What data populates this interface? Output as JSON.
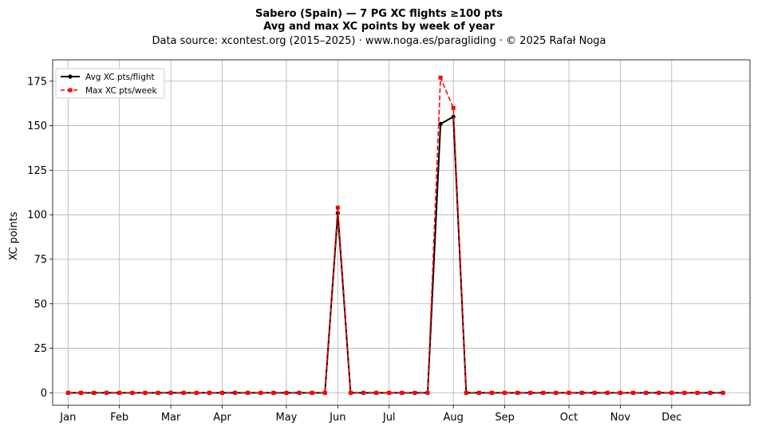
{
  "chart_data": {
    "type": "line",
    "title_line1": "Sabero (Spain)  —  7 PG XC flights ≥100 pts",
    "title_line2": "Avg and max XC points by week of year",
    "subtitle": "Data source: xcontest.org (2015–2025)  ·  www.noga.es/paragliding  ·  © 2025 Rafał Noga",
    "xlabel": "",
    "ylabel": "XC points",
    "ylim": [
      -7,
      187
    ],
    "xlim": [
      -1.2,
      53.1
    ],
    "yticks": [
      0,
      25,
      50,
      75,
      100,
      125,
      150,
      175
    ],
    "xticks": [
      {
        "week": 0,
        "label": "Jan"
      },
      {
        "week": 4,
        "label": "Feb"
      },
      {
        "week": 8,
        "label": "Mar"
      },
      {
        "week": 12,
        "label": "Apr"
      },
      {
        "week": 17,
        "label": "May"
      },
      {
        "week": 21,
        "label": "Jun"
      },
      {
        "week": 25,
        "label": "Jul"
      },
      {
        "week": 30,
        "label": "Aug"
      },
      {
        "week": 34,
        "label": "Sep"
      },
      {
        "week": 39,
        "label": "Oct"
      },
      {
        "week": 43,
        "label": "Nov"
      },
      {
        "week": 47,
        "label": "Dec"
      }
    ],
    "grid": true,
    "legend_position": "top-left",
    "x": [
      0,
      1,
      2,
      3,
      4,
      5,
      6,
      7,
      8,
      9,
      10,
      11,
      12,
      13,
      14,
      15,
      16,
      17,
      18,
      19,
      20,
      21,
      22,
      23,
      24,
      25,
      26,
      27,
      28,
      29,
      30,
      31,
      32,
      33,
      34,
      35,
      36,
      37,
      38,
      39,
      40,
      41,
      42,
      43,
      44,
      45,
      46,
      47,
      48,
      49,
      50,
      51
    ],
    "series": [
      {
        "name": "Avg XC pts/flight",
        "color": "#000000",
        "style": "solid",
        "marker": "circle",
        "values": [
          0,
          0,
          0,
          0,
          0,
          0,
          0,
          0,
          0,
          0,
          0,
          0,
          0,
          0,
          0,
          0,
          0,
          0,
          0,
          0,
          0,
          101,
          0,
          0,
          0,
          0,
          0,
          0,
          0,
          151,
          155,
          0,
          0,
          0,
          0,
          0,
          0,
          0,
          0,
          0,
          0,
          0,
          0,
          0,
          0,
          0,
          0,
          0,
          0,
          0,
          0,
          0
        ]
      },
      {
        "name": "Max XC pts/week",
        "color": "#ff0000",
        "style": "dashed",
        "marker": "square",
        "values": [
          0,
          0,
          0,
          0,
          0,
          0,
          0,
          0,
          0,
          0,
          0,
          0,
          0,
          0,
          0,
          0,
          0,
          0,
          0,
          0,
          0,
          104,
          0,
          0,
          0,
          0,
          0,
          0,
          0,
          177,
          160,
          0,
          0,
          0,
          0,
          0,
          0,
          0,
          0,
          0,
          0,
          0,
          0,
          0,
          0,
          0,
          0,
          0,
          0,
          0,
          0,
          0
        ]
      }
    ]
  }
}
